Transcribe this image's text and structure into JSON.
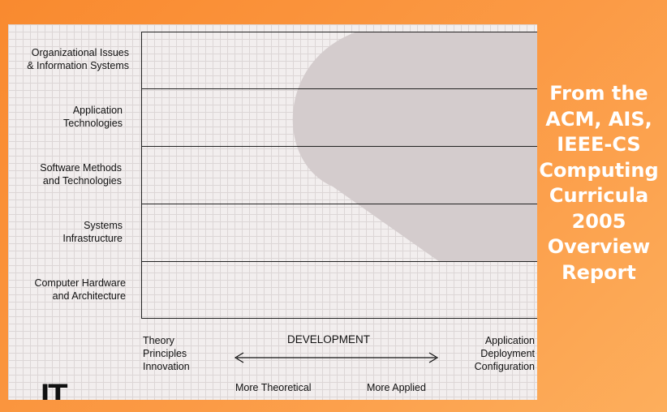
{
  "diagram": {
    "rows": [
      {
        "label": "Organizational Issues\n& Information Systems"
      },
      {
        "label": "Application\nTechnologies"
      },
      {
        "label": "Software Methods\nand Technologies"
      },
      {
        "label": "Systems\nInfrastructure"
      },
      {
        "label": "Computer Hardware\nand Architecture"
      }
    ],
    "axis": {
      "left_label": "Theory\nPrinciples\nInnovation",
      "center_label": "DEVELOPMENT",
      "right_label": "Application\nDeployment\nConfiguration",
      "left_caption": "More Theoretical",
      "right_caption": "More Applied"
    },
    "corner_mark": "IT",
    "region_color": "#d4cccd"
  },
  "side_title": {
    "lines": [
      "From the",
      "ACM, AIS,",
      "IEEE-CS",
      "Computing",
      "Curricula",
      "2005",
      "Overview",
      "Report"
    ]
  }
}
